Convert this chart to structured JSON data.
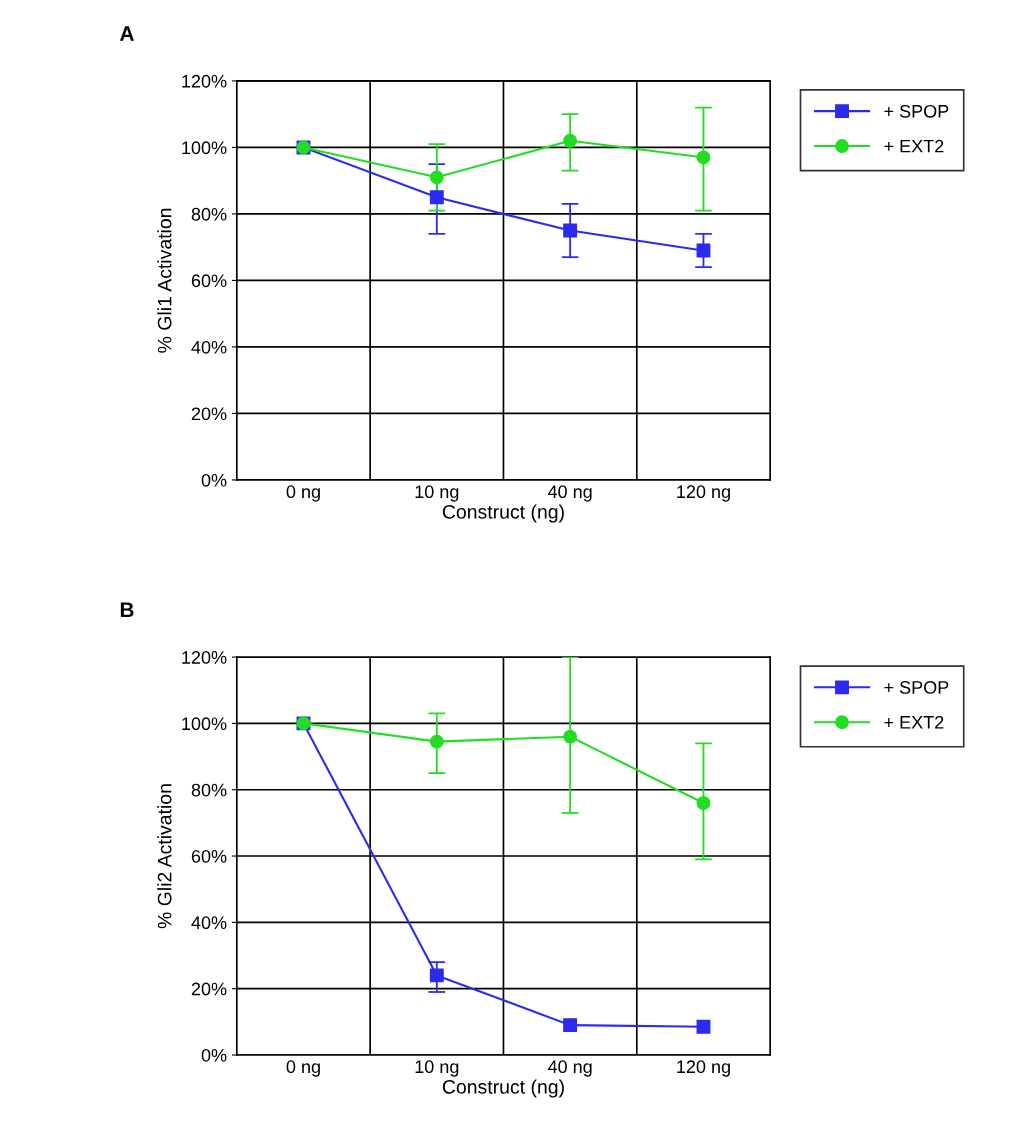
{
  "chart_data": [
    {
      "type": "line",
      "title": "A",
      "xlabel": "Construct (ng)",
      "ylabel": "% Gli1 Activation",
      "categories": [
        "0 ng",
        "10 ng",
        "40 ng",
        "120 ng"
      ],
      "ylim": [
        0,
        120
      ],
      "yticks": [
        {
          "value": 0,
          "label": "0%"
        },
        {
          "value": 20,
          "label": "20%"
        },
        {
          "value": 40,
          "label": "40%"
        },
        {
          "value": 60,
          "label": "60%"
        },
        {
          "value": 80,
          "label": "80%"
        },
        {
          "value": 100,
          "label": "100%"
        },
        {
          "value": 120,
          "label": "120%"
        }
      ],
      "grid": true,
      "legend": "top right",
      "series": [
        {
          "name": "+ SPOP",
          "color": "#2b2bf0",
          "marker": "square",
          "values": [
            100,
            85,
            75,
            69
          ],
          "errors": [
            null,
            [
              74,
              95
            ],
            [
              67,
              83
            ],
            [
              64,
              74
            ]
          ]
        },
        {
          "name": "+ EXT2",
          "color": "#22dd22",
          "marker": "circle",
          "values": [
            100,
            91,
            102,
            97
          ],
          "errors": [
            null,
            [
              81,
              101
            ],
            [
              93,
              110
            ],
            [
              81,
              112
            ]
          ]
        }
      ]
    },
    {
      "type": "line",
      "title": "B",
      "xlabel": "Construct (ng)",
      "ylabel": "% Gli2 Activation",
      "categories": [
        "0 ng",
        "10 ng",
        "40 ng",
        "120 ng"
      ],
      "ylim": [
        0,
        120
      ],
      "yticks": [
        {
          "value": 0,
          "label": "0%"
        },
        {
          "value": 20,
          "label": "20%"
        },
        {
          "value": 40,
          "label": "40%"
        },
        {
          "value": 60,
          "label": "60%"
        },
        {
          "value": 80,
          "label": "80%"
        },
        {
          "value": 100,
          "label": "100%"
        },
        {
          "value": 120,
          "label": "120%"
        }
      ],
      "grid": true,
      "legend": "top right",
      "series": [
        {
          "name": "+ SPOP",
          "color": "#2b2bf0",
          "marker": "square",
          "values": [
            100,
            24,
            9,
            8.5
          ],
          "errors": [
            null,
            [
              19,
              28
            ],
            null,
            null
          ]
        },
        {
          "name": "+ EXT2",
          "color": "#22dd22",
          "marker": "circle",
          "values": [
            100,
            94.5,
            96,
            76
          ],
          "errors": [
            null,
            [
              85,
              103
            ],
            [
              73,
              120
            ],
            [
              59,
              94
            ]
          ]
        }
      ]
    }
  ]
}
